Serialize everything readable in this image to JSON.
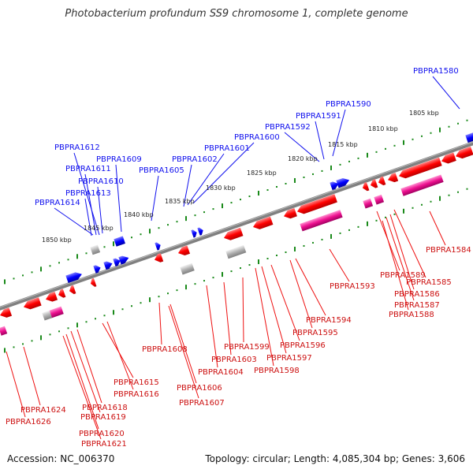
{
  "title": "Photobacterium profundum SS9 chromosome 1, complete genome",
  "footer": {
    "accession": "Accession: NC_006370",
    "summary": "Topology: circular; Length: 4,085,304 bp; Genes: 3,606"
  },
  "colors": {
    "forward_strand": "#1010ee",
    "reverse_strand": "#ee1010",
    "rna": "#ee1090",
    "pseudo": "#aaaaaa",
    "backbone": "#808080",
    "tick_track": "#1a8a1a"
  },
  "kbp_ticks": [
    "1805 kbp",
    "1810 kbp",
    "1815 kbp",
    "1820 kbp",
    "1825 kbp",
    "1830 kbp",
    "1835 kbp",
    "1840 kbp",
    "1845 kbp",
    "1850 kbp"
  ],
  "forward_labels": [
    "PBPRA1580",
    "PBPRA1590",
    "PBPRA1591",
    "PBPRA1592",
    "PBPRA1600",
    "PBPRA1601",
    "PBPRA1602",
    "PBPRA1605",
    "PBPRA1609",
    "PBPRA1612",
    "PBPRA1611",
    "PBPRA1610",
    "PBPRA1613",
    "PBPRA1614"
  ],
  "reverse_labels": [
    "PBPRA1584",
    "PBPRA1585",
    "PBPRA1589",
    "PBPRA1586",
    "PBPRA1587",
    "PBPRA1588",
    "PBPRA1593",
    "PBPRA1594",
    "PBPRA1595",
    "PBPRA1596",
    "PBPRA1597",
    "PBPRA1598",
    "PBPRA1599",
    "PBPRA1603",
    "PBPRA1604",
    "PBPRA1608",
    "PBPRA1606",
    "PBPRA1607",
    "PBPRA1615",
    "PBPRA1616",
    "PBPRA1618",
    "PBPRA1619",
    "PBPRA1620",
    "PBPRA1621",
    "PBPRA1624",
    "PBPRA1626"
  ]
}
